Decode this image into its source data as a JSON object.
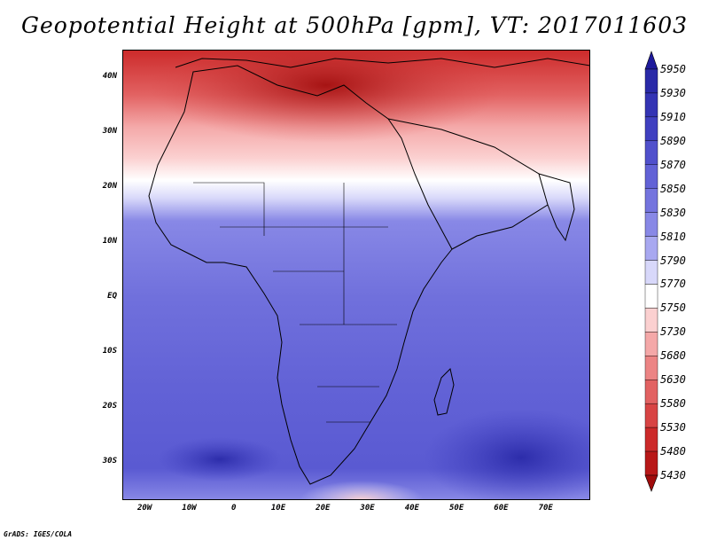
{
  "title": "Geopotential Height at 500hPa [gpm], VT: 2017011603",
  "footer": "GrADS: IGES/COLA",
  "map": {
    "region": "Africa",
    "lon_range": [
      -25,
      80
    ],
    "lat_range": [
      -37,
      45
    ],
    "lat_ticks": [
      "40N",
      "30N",
      "20N",
      "10N",
      "EQ",
      "10S",
      "20S",
      "30S"
    ],
    "lon_ticks": [
      "20W",
      "10W",
      "0",
      "10E",
      "20E",
      "30E",
      "40E",
      "50E",
      "60E",
      "70E"
    ]
  },
  "colorbar": {
    "labels": [
      "5950",
      "5930",
      "5910",
      "5890",
      "5870",
      "5850",
      "5830",
      "5810",
      "5790",
      "5770",
      "5750",
      "5730",
      "5680",
      "5630",
      "5580",
      "5530",
      "5480",
      "5430"
    ],
    "colors": [
      "#1e1a9c",
      "#2a2aa8",
      "#3434b4",
      "#4040c0",
      "#5050cc",
      "#6262d6",
      "#7474de",
      "#8888e6",
      "#a8a8f0",
      "#d8d8fa",
      "#ffffff",
      "#fbd0d0",
      "#f4a8a8",
      "#ec8484",
      "#e26262",
      "#d84444",
      "#cc2a2a",
      "#b81818",
      "#a00c0c"
    ]
  }
}
